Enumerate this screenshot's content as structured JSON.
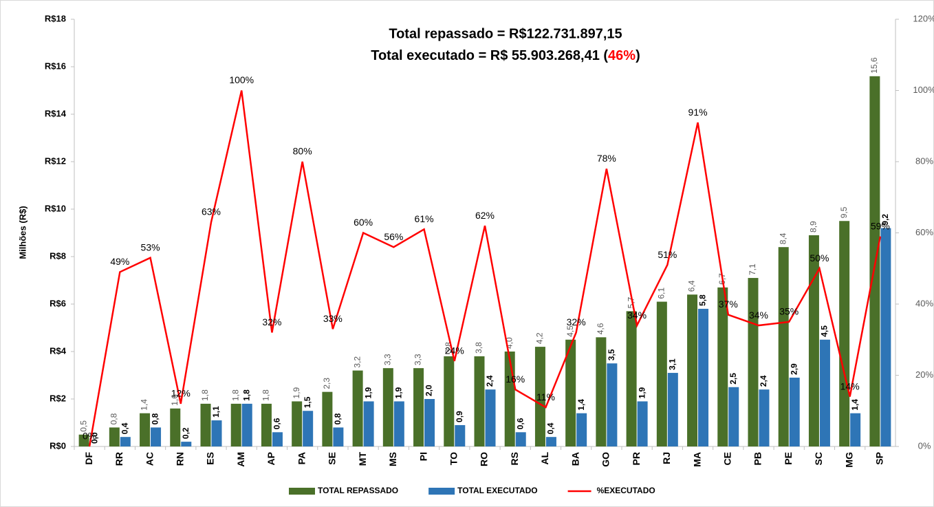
{
  "chart_data": {
    "type": "bar",
    "title": "Total repassado = R$122.731.897,15",
    "subtitle": {
      "text": "Total executado = R$ 55.903.268,41 (",
      "highlight": "46%",
      "close": ")"
    },
    "y_label": "Milhões (R$)",
    "categories": [
      "DF",
      "RR",
      "AC",
      "RN",
      "ES",
      "AM",
      "AP",
      "PA",
      "SE",
      "MT",
      "MS",
      "PI",
      "TO",
      "RO",
      "RS",
      "AL",
      "BA",
      "GO",
      "PR",
      "RJ",
      "MA",
      "CE",
      "PB",
      "PE",
      "SC",
      "MG",
      "SP"
    ],
    "series": [
      {
        "name": "TOTAL REPASSADO",
        "color": "#4a7029",
        "values": [
          0.5,
          0.8,
          1.4,
          1.6,
          1.8,
          1.8,
          1.8,
          1.9,
          2.3,
          3.2,
          3.3,
          3.3,
          3.8,
          3.8,
          4.0,
          4.2,
          4.5,
          4.6,
          5.7,
          6.1,
          6.4,
          6.7,
          7.1,
          8.4,
          8.9,
          9.5,
          15.6
        ],
        "value_labels": [
          "0,5",
          "0,8",
          "1,4",
          "1,6",
          "1,8",
          "1,8",
          "1,8",
          "1,9",
          "2,3",
          "3,2",
          "3,3",
          "3,3",
          "3,8",
          "3,8",
          "4,0",
          "4,2",
          "4,5",
          "4,6",
          "5,7",
          "6,1",
          "6,4",
          "6,7",
          "7,1",
          "8,4",
          "8,9",
          "9,5",
          "15,6"
        ]
      },
      {
        "name": "TOTAL EXECUTADO",
        "color": "#2e75b6",
        "values": [
          0.0,
          0.4,
          0.8,
          0.2,
          1.1,
          1.8,
          0.6,
          1.5,
          0.8,
          1.9,
          1.9,
          2.0,
          0.9,
          2.4,
          0.6,
          0.4,
          1.4,
          3.5,
          1.9,
          3.1,
          5.8,
          2.5,
          2.4,
          2.9,
          4.5,
          1.4,
          9.2
        ],
        "value_labels": [
          "0,0",
          "0,4",
          "0,8",
          "0,2",
          "1,1",
          "1,8",
          "0,6",
          "1,5",
          "0,8",
          "1,9",
          "1,9",
          "2,0",
          "0,9",
          "2,4",
          "0,6",
          "0,4",
          "1,4",
          "3,5",
          "1,9",
          "3,1",
          "5,8",
          "2,5",
          "2,4",
          "2,9",
          "4,5",
          "1,4",
          "9,2"
        ]
      },
      {
        "name": "%EXECUTADO",
        "color": "#ff0000",
        "type": "line",
        "axis": "y2",
        "values": [
          0,
          49,
          53,
          12,
          63,
          100,
          32,
          80,
          33,
          60,
          56,
          61,
          24,
          62,
          16,
          11,
          32,
          78,
          34,
          51,
          91,
          37,
          34,
          35,
          50,
          14,
          59
        ],
        "value_labels": [
          "0%",
          "49%",
          "53%",
          "12%",
          "63%",
          "100%",
          "32%",
          "80%",
          "33%",
          "60%",
          "56%",
          "61%",
          "24%",
          "62%",
          "16%",
          "11%",
          "32%",
          "78%",
          "34%",
          "51%",
          "91%",
          "37%",
          "34%",
          "35%",
          "50%",
          "14%",
          "59%"
        ]
      }
    ],
    "ylim": [
      0,
      18
    ],
    "yticks": [
      {
        "value": 0,
        "label": "R$0"
      },
      {
        "value": 2,
        "label": "R$2"
      },
      {
        "value": 4,
        "label": "R$4"
      },
      {
        "value": 6,
        "label": "R$6"
      },
      {
        "value": 8,
        "label": "R$8"
      },
      {
        "value": 10,
        "label": "R$10"
      },
      {
        "value": 12,
        "label": "R$12"
      },
      {
        "value": 14,
        "label": "R$14"
      },
      {
        "value": 16,
        "label": "R$16"
      },
      {
        "value": 18,
        "label": "R$18"
      }
    ],
    "y2lim": [
      0,
      120
    ],
    "y2ticks": [
      {
        "value": 0,
        "label": "0%"
      },
      {
        "value": 20,
        "label": "20%"
      },
      {
        "value": 40,
        "label": "40%"
      },
      {
        "value": 60,
        "label": "60%"
      },
      {
        "value": 80,
        "label": "80%"
      },
      {
        "value": 100,
        "label": "100%"
      },
      {
        "value": 120,
        "label": "120%"
      }
    ],
    "legend": "bottom",
    "grid": false
  }
}
